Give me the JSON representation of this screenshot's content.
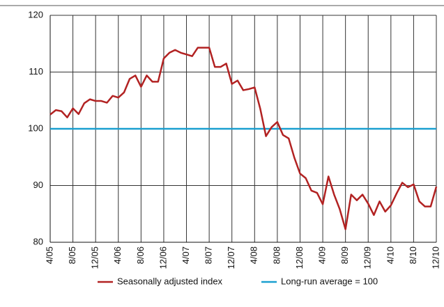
{
  "chart_data": {
    "type": "line",
    "categories": [
      "4/05",
      null,
      null,
      null,
      "8/05",
      null,
      null,
      null,
      "12/05",
      null,
      null,
      null,
      "4/06",
      null,
      null,
      null,
      "8/06",
      null,
      null,
      null,
      "12/06",
      null,
      null,
      null,
      "4/07",
      null,
      null,
      null,
      "8/07",
      null,
      null,
      null,
      "12/07",
      null,
      null,
      null,
      "4/08",
      null,
      null,
      null,
      "8/08",
      null,
      null,
      null,
      "12/08",
      null,
      null,
      null,
      "4/09",
      null,
      null,
      null,
      "8/09",
      null,
      null,
      null,
      "12/09",
      null,
      null,
      null,
      "4/10",
      null,
      null,
      null,
      "8/10",
      null,
      null,
      null,
      "12/10"
    ],
    "series": [
      {
        "name": "Seasonally adjusted index",
        "color": "#b22222",
        "values": [
          102.5,
          103.3,
          103.1,
          102.0,
          103.6,
          102.6,
          104.5,
          105.2,
          104.9,
          104.9,
          104.6,
          105.8,
          105.5,
          106.4,
          108.8,
          109.4,
          107.4,
          109.4,
          108.3,
          108.3,
          112.4,
          113.4,
          113.9,
          113.4,
          113.1,
          112.8,
          114.3,
          114.3,
          114.3,
          110.9,
          110.9,
          111.5,
          107.9,
          108.5,
          106.8,
          107.0,
          107.3,
          103.5,
          98.7,
          100.3,
          101.2,
          98.9,
          98.3,
          94.9,
          92.1,
          91.3,
          89.1,
          88.7,
          86.7,
          91.6,
          88.4,
          85.8,
          82.3,
          88.4,
          87.4,
          88.4,
          86.8,
          84.8,
          87.2,
          85.4,
          86.5,
          88.6,
          90.5,
          89.7,
          90.2,
          87.2,
          86.3,
          86.3,
          89.8
        ]
      }
    ],
    "reference_line": {
      "name": "Long-run average = 100",
      "value": 100,
      "color": "#1a9fd0"
    },
    "ylim": [
      80,
      120
    ],
    "yticks": [
      80,
      90,
      100,
      110,
      120
    ],
    "grid": true
  }
}
